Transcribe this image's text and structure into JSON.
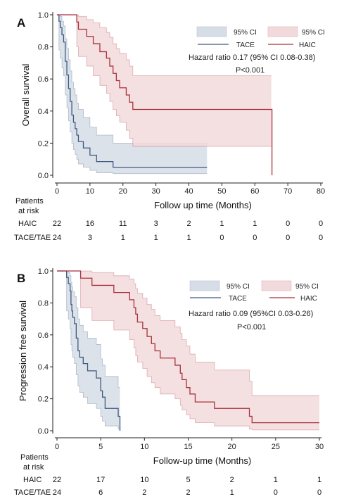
{
  "chart_data": [
    {
      "panel_label": "A",
      "type": "line",
      "ylabel": "Overall survival",
      "xlabel": "Follow up time (Months)",
      "xlim": [
        0,
        80
      ],
      "ylim": [
        0,
        1.0
      ],
      "x_ticks": [
        "0",
        "10",
        "20",
        "30",
        "40",
        "50",
        "60",
        "70",
        "80"
      ],
      "y_ticks": [
        "0.0",
        "0.2",
        "0.4",
        "0.6",
        "0.8",
        "1.0"
      ],
      "legend": {
        "ci_tace": "95% CI",
        "ci_haic": "95% CI",
        "tace": "TACE",
        "haic": "HAIC"
      },
      "hazard_ratio": "Hazard ratio 0.17 (95% CI 0.08-0.38)",
      "p_value": "P<0.001",
      "colors": {
        "tace": "#3c5a80",
        "tace_ci": "#d6dde6",
        "haic": "#a8323c",
        "haic_ci": "#f2d9dc"
      },
      "series": [
        {
          "name": "TACE",
          "steps": [
            [
              0,
              1.0
            ],
            [
              0.6,
              0.96
            ],
            [
              1,
              0.92
            ],
            [
              1.5,
              0.875
            ],
            [
              2,
              0.83
            ],
            [
              2.5,
              0.71
            ],
            [
              3,
              0.625
            ],
            [
              3.5,
              0.54
            ],
            [
              4,
              0.46
            ],
            [
              4.5,
              0.375
            ],
            [
              5,
              0.33
            ],
            [
              5.5,
              0.29
            ],
            [
              6,
              0.25
            ],
            [
              6.5,
              0.21
            ],
            [
              8,
              0.17
            ],
            [
              10,
              0.125
            ],
            [
              12,
              0.085
            ],
            [
              17,
              0.05
            ],
            [
              45.5,
              0.05
            ]
          ],
          "end": 45.5
        },
        {
          "name": "HAIC",
          "steps": [
            [
              0,
              1.0
            ],
            [
              6,
              0.955
            ],
            [
              6.5,
              0.91
            ],
            [
              9,
              0.865
            ],
            [
              11,
              0.82
            ],
            [
              13,
              0.77
            ],
            [
              15,
              0.73
            ],
            [
              16,
              0.68
            ],
            [
              17,
              0.635
            ],
            [
              18,
              0.59
            ],
            [
              19,
              0.545
            ],
            [
              21,
              0.5
            ],
            [
              22,
              0.455
            ],
            [
              23,
              0.41
            ],
            [
              65,
              0.41
            ],
            [
              65.2,
              0.0
            ]
          ],
          "end": 65.2
        }
      ],
      "ci": [
        {
          "name": "TACE",
          "upper": [
            [
              0,
              1.0
            ],
            [
              0.6,
              1.0
            ],
            [
              1,
              0.99
            ],
            [
              1.5,
              0.96
            ],
            [
              2,
              0.93
            ],
            [
              2.5,
              0.85
            ],
            [
              3,
              0.79
            ],
            [
              3.5,
              0.72
            ],
            [
              4,
              0.65
            ],
            [
              4.5,
              0.58
            ],
            [
              5,
              0.54
            ],
            [
              5.5,
              0.5
            ],
            [
              6,
              0.45
            ],
            [
              6.5,
              0.41
            ],
            [
              8,
              0.36
            ],
            [
              10,
              0.3
            ],
            [
              12,
              0.25
            ],
            [
              17,
              0.2
            ],
            [
              45.5,
              0.2
            ]
          ],
          "lower": [
            [
              0,
              1.0
            ],
            [
              0.6,
              0.78
            ],
            [
              1,
              0.73
            ],
            [
              1.5,
              0.67
            ],
            [
              2,
              0.62
            ],
            [
              2.5,
              0.5
            ],
            [
              3,
              0.42
            ],
            [
              3.5,
              0.34
            ],
            [
              4,
              0.27
            ],
            [
              4.5,
              0.2
            ],
            [
              5,
              0.16
            ],
            [
              5.5,
              0.13
            ],
            [
              6,
              0.1
            ],
            [
              6.5,
              0.07
            ],
            [
              8,
              0.05
            ],
            [
              10,
              0.03
            ],
            [
              12,
              0.015
            ],
            [
              17,
              0.01
            ],
            [
              45.5,
              0.01
            ]
          ],
          "end": 45.5
        },
        {
          "name": "HAIC",
          "upper": [
            [
              0,
              1.0
            ],
            [
              6,
              1.0
            ],
            [
              6.5,
              0.99
            ],
            [
              9,
              0.97
            ],
            [
              11,
              0.95
            ],
            [
              13,
              0.92
            ],
            [
              15,
              0.89
            ],
            [
              16,
              0.86
            ],
            [
              17,
              0.82
            ],
            [
              18,
              0.79
            ],
            [
              19,
              0.76
            ],
            [
              21,
              0.72
            ],
            [
              22,
              0.68
            ],
            [
              23,
              0.62
            ],
            [
              65,
              0.62
            ]
          ],
          "lower": [
            [
              0,
              1.0
            ],
            [
              6,
              0.8
            ],
            [
              6.5,
              0.74
            ],
            [
              9,
              0.68
            ],
            [
              11,
              0.62
            ],
            [
              13,
              0.56
            ],
            [
              15,
              0.51
            ],
            [
              16,
              0.46
            ],
            [
              17,
              0.41
            ],
            [
              18,
              0.37
            ],
            [
              19,
              0.33
            ],
            [
              21,
              0.28
            ],
            [
              22,
              0.23
            ],
            [
              23,
              0.18
            ],
            [
              65,
              0.18
            ]
          ],
          "end": 65
        }
      ],
      "risk_table": {
        "header_line1": "Patients",
        "header_line2": "at risk",
        "rows": [
          {
            "label": "HAIC",
            "values": [
              "22",
              "16",
              "11",
              "3",
              "2",
              "1",
              "1",
              "0",
              "0"
            ]
          },
          {
            "label": "TACE/TAE",
            "values": [
              "24",
              "3",
              "1",
              "1",
              "1",
              "0",
              "0",
              "0",
              "0"
            ]
          }
        ]
      }
    },
    {
      "panel_label": "B",
      "type": "line",
      "ylabel": "Progression free survival",
      "xlabel": "Follow-up time (Months)",
      "xlim": [
        0,
        30
      ],
      "ylim": [
        0,
        1.0
      ],
      "x_ticks": [
        "0",
        "5",
        "10",
        "15",
        "20",
        "25",
        "30"
      ],
      "y_ticks": [
        "0.0",
        "0.2",
        "0.4",
        "0.6",
        "0.8",
        "1.0"
      ],
      "legend": {
        "ci_tace": "95% CI",
        "ci_haic": "95% CI",
        "tace": "TACE",
        "haic": "HAIC"
      },
      "hazard_ratio": "Hazard ratio 0.09 (95%CI 0.03-0.26)",
      "p_value": "P<0.001",
      "colors": {
        "tace": "#3c5a80",
        "tace_ci": "#d6dde6",
        "haic": "#a8323c",
        "haic_ci": "#f2d9dc"
      },
      "series": [
        {
          "name": "TACE",
          "steps": [
            [
              0,
              1.0
            ],
            [
              1.1,
              0.96
            ],
            [
              1.3,
              0.92
            ],
            [
              1.5,
              0.875
            ],
            [
              1.6,
              0.79
            ],
            [
              1.7,
              0.75
            ],
            [
              1.8,
              0.71
            ],
            [
              2.0,
              0.67
            ],
            [
              2.2,
              0.58
            ],
            [
              2.4,
              0.5
            ],
            [
              2.6,
              0.46
            ],
            [
              3.0,
              0.42
            ],
            [
              3.5,
              0.375
            ],
            [
              4.5,
              0.33
            ],
            [
              5.0,
              0.25
            ],
            [
              5.2,
              0.21
            ],
            [
              5.5,
              0.14
            ],
            [
              7.0,
              0.09
            ],
            [
              7.2,
              0.0
            ]
          ],
          "end": 7.2
        },
        {
          "name": "HAIC",
          "steps": [
            [
              0,
              1.0
            ],
            [
              2.7,
              0.955
            ],
            [
              4.0,
              0.91
            ],
            [
              6.5,
              0.865
            ],
            [
              8.3,
              0.82
            ],
            [
              8.8,
              0.77
            ],
            [
              9.0,
              0.73
            ],
            [
              9.2,
              0.68
            ],
            [
              9.8,
              0.64
            ],
            [
              10.3,
              0.59
            ],
            [
              10.8,
              0.545
            ],
            [
              11.2,
              0.5
            ],
            [
              11.8,
              0.455
            ],
            [
              13.5,
              0.41
            ],
            [
              14.1,
              0.36
            ],
            [
              14.3,
              0.32
            ],
            [
              14.8,
              0.27
            ],
            [
              15.2,
              0.23
            ],
            [
              15.8,
              0.18
            ],
            [
              18.0,
              0.14
            ],
            [
              22.0,
              0.09
            ],
            [
              22.3,
              0.05
            ],
            [
              30,
              0.05
            ]
          ],
          "end": 30
        }
      ],
      "ci": [
        {
          "name": "TACE",
          "upper": [
            [
              0,
              1.0
            ],
            [
              1.1,
              1.0
            ],
            [
              1.3,
              0.99
            ],
            [
              1.5,
              0.97
            ],
            [
              1.6,
              0.93
            ],
            [
              1.7,
              0.9
            ],
            [
              1.8,
              0.87
            ],
            [
              2.0,
              0.84
            ],
            [
              2.2,
              0.77
            ],
            [
              2.4,
              0.7
            ],
            [
              2.6,
              0.66
            ],
            [
              3.0,
              0.62
            ],
            [
              3.5,
              0.58
            ],
            [
              4.5,
              0.54
            ],
            [
              5.0,
              0.45
            ],
            [
              5.2,
              0.41
            ],
            [
              5.5,
              0.34
            ],
            [
              7.0,
              0.27
            ]
          ],
          "lower": [
            [
              0,
              1.0
            ],
            [
              1.1,
              0.75
            ],
            [
              1.3,
              0.7
            ],
            [
              1.5,
              0.64
            ],
            [
              1.6,
              0.54
            ],
            [
              1.7,
              0.5
            ],
            [
              1.8,
              0.46
            ],
            [
              2.0,
              0.42
            ],
            [
              2.2,
              0.35
            ],
            [
              2.4,
              0.28
            ],
            [
              2.6,
              0.24
            ],
            [
              3.0,
              0.21
            ],
            [
              3.5,
              0.17
            ],
            [
              4.5,
              0.14
            ],
            [
              5.0,
              0.09
            ],
            [
              5.2,
              0.06
            ],
            [
              5.5,
              0.03
            ],
            [
              7.0,
              0.01
            ]
          ],
          "end": 7.2
        },
        {
          "name": "HAIC",
          "upper": [
            [
              0,
              1.0
            ],
            [
              2.7,
              1.0
            ],
            [
              4.0,
              0.99
            ],
            [
              6.5,
              0.97
            ],
            [
              8.3,
              0.95
            ],
            [
              8.8,
              0.92
            ],
            [
              9.0,
              0.89
            ],
            [
              9.2,
              0.86
            ],
            [
              9.8,
              0.83
            ],
            [
              10.3,
              0.79
            ],
            [
              10.8,
              0.76
            ],
            [
              11.2,
              0.72
            ],
            [
              11.8,
              0.69
            ],
            [
              13.5,
              0.65
            ],
            [
              14.1,
              0.61
            ],
            [
              14.3,
              0.57
            ],
            [
              14.8,
              0.53
            ],
            [
              15.2,
              0.48
            ],
            [
              15.8,
              0.43
            ],
            [
              18.0,
              0.38
            ],
            [
              22.0,
              0.31
            ],
            [
              22.3,
              0.22
            ],
            [
              30,
              0.22
            ]
          ],
          "lower": [
            [
              0,
              1.0
            ],
            [
              2.7,
              0.77
            ],
            [
              4.0,
              0.69
            ],
            [
              6.5,
              0.63
            ],
            [
              8.3,
              0.57
            ],
            [
              8.8,
              0.52
            ],
            [
              9.0,
              0.47
            ],
            [
              9.2,
              0.43
            ],
            [
              9.8,
              0.39
            ],
            [
              10.3,
              0.34
            ],
            [
              10.8,
              0.3
            ],
            [
              11.2,
              0.27
            ],
            [
              11.8,
              0.23
            ],
            [
              13.5,
              0.2
            ],
            [
              14.1,
              0.16
            ],
            [
              14.3,
              0.13
            ],
            [
              14.8,
              0.1
            ],
            [
              15.2,
              0.075
            ],
            [
              15.8,
              0.05
            ],
            [
              18.0,
              0.03
            ],
            [
              22.0,
              0.01
            ],
            [
              22.3,
              0.005
            ],
            [
              30,
              0.005
            ]
          ],
          "end": 30
        }
      ],
      "risk_table": {
        "header_line1": "Patients",
        "header_line2": "at risk",
        "rows": [
          {
            "label": "HAIC",
            "values": [
              "22",
              "17",
              "10",
              "5",
              "2",
              "1",
              "1"
            ]
          },
          {
            "label": "TACE/TAE",
            "values": [
              "24",
              "6",
              "2",
              "2",
              "1",
              "0",
              "0"
            ]
          }
        ]
      }
    }
  ]
}
